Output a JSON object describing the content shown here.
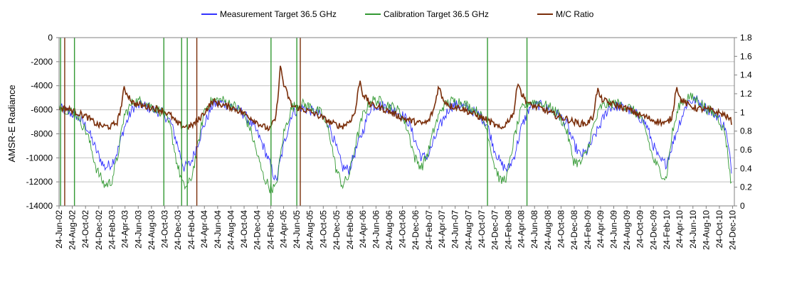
{
  "chart_data": {
    "type": "line",
    "title": "",
    "y_left_label": "AMSR-E Radiance",
    "y_left_range": [
      -14000,
      0
    ],
    "y_left_ticks": [
      "0",
      "-2000",
      "-4000",
      "-6000",
      "-8000",
      "-10000",
      "-12000",
      "-14000"
    ],
    "y_left_tick_values": [
      0,
      -2000,
      -4000,
      -6000,
      -8000,
      -10000,
      -12000,
      -14000
    ],
    "y_right_range": [
      0,
      1.8
    ],
    "y_right_ticks": [
      "1.8",
      "1.6",
      "1.4",
      "1.2",
      "1",
      "0.8",
      "0.6",
      "0.4",
      "0.2",
      "0"
    ],
    "y_right_tick_values": [
      1.8,
      1.6,
      1.4,
      1.2,
      1.0,
      0.8,
      0.6,
      0.4,
      0.2,
      0
    ],
    "x_range": [
      "2002-06-24",
      "2011-01-01"
    ],
    "x_ticks": [
      "24-Jun-02",
      "24-Aug-02",
      "24-Oct-02",
      "24-Dec-02",
      "24-Feb-03",
      "24-Apr-03",
      "24-Jun-03",
      "24-Aug-03",
      "24-Oct-03",
      "24-Dec-03",
      "24-Feb-04",
      "24-Apr-04",
      "24-Jun-04",
      "24-Aug-04",
      "24-Oct-04",
      "24-Dec-04",
      "24-Feb-05",
      "24-Apr-05",
      "24-Jun-05",
      "24-Aug-05",
      "24-Oct-05",
      "24-Dec-05",
      "24-Feb-06",
      "24-Apr-06",
      "24-Jun-06",
      "24-Aug-06",
      "24-Oct-06",
      "24-Dec-06",
      "24-Feb-07",
      "24-Apr-07",
      "24-Jun-07",
      "24-Aug-07",
      "24-Oct-07",
      "24-Dec-07",
      "24-Feb-08",
      "24-Apr-08",
      "24-Jun-08",
      "24-Aug-08",
      "24-Oct-08",
      "24-Dec-08",
      "24-Feb-09",
      "24-Apr-09",
      "24-Jun-09",
      "24-Aug-09",
      "24-Oct-09",
      "24-Dec-09",
      "24-Feb-10",
      "24-Apr-10",
      "24-Jun-10",
      "24-Aug-10",
      "24-Oct-10",
      "24-Dec-10"
    ],
    "grid": "horizontal",
    "legend_position": "top",
    "series": [
      {
        "name": "Measurement Target 36.5 GHz",
        "color": "#3333ff",
        "axis": "left",
        "x": [
          "2002-06-24",
          "2002-08-01",
          "2002-09-15",
          "2002-11-01",
          "2002-12-15",
          "2003-01-20",
          "2003-02-20",
          "2003-03-20",
          "2003-04-20",
          "2003-06-01",
          "2003-07-15",
          "2003-09-01",
          "2003-10-15",
          "2003-11-20",
          "2003-12-20",
          "2004-01-20",
          "2004-02-20",
          "2004-03-20",
          "2004-04-24",
          "2004-06-01",
          "2004-07-15",
          "2004-09-01",
          "2004-10-15",
          "2004-11-20",
          "2004-12-20",
          "2005-01-20",
          "2005-02-20",
          "2005-03-20",
          "2005-04-24",
          "2005-06-01",
          "2005-07-15",
          "2005-09-01",
          "2005-10-15",
          "2005-11-20",
          "2005-12-20",
          "2006-01-20",
          "2006-02-20",
          "2006-03-20",
          "2006-04-24",
          "2006-06-01",
          "2006-07-15",
          "2006-09-01",
          "2006-10-15",
          "2006-11-20",
          "2006-12-20",
          "2007-01-20",
          "2007-02-20",
          "2007-03-20",
          "2007-04-24",
          "2007-06-01",
          "2007-07-15",
          "2007-09-01",
          "2007-10-15",
          "2007-11-20",
          "2007-12-20",
          "2008-01-20",
          "2008-02-20",
          "2008-03-20",
          "2008-04-24",
          "2008-06-01",
          "2008-07-15",
          "2008-09-01",
          "2008-10-15",
          "2008-11-20",
          "2008-12-20",
          "2009-01-20",
          "2009-02-20",
          "2009-03-20",
          "2009-04-24",
          "2009-06-01",
          "2009-07-15",
          "2009-09-01",
          "2009-10-15",
          "2009-11-20",
          "2009-12-20",
          "2010-01-20",
          "2010-02-20",
          "2010-03-20",
          "2010-04-24",
          "2010-06-01",
          "2010-07-15",
          "2010-09-01",
          "2010-10-15",
          "2010-11-20",
          "2010-12-20"
        ],
        "values": [
          -5800,
          -6200,
          -6500,
          -7500,
          -9500,
          -10800,
          -10500,
          -9500,
          -7500,
          -5800,
          -5600,
          -6000,
          -6300,
          -7000,
          -8800,
          -10800,
          -10500,
          -9000,
          -7200,
          -5600,
          -5400,
          -5800,
          -6200,
          -7000,
          -7800,
          -9000,
          -10500,
          -12000,
          -9000,
          -6300,
          -5800,
          -6100,
          -6500,
          -7200,
          -9000,
          -10800,
          -11000,
          -9500,
          -7800,
          -5700,
          -5600,
          -5900,
          -6300,
          -7000,
          -8500,
          -10000,
          -9800,
          -8500,
          -7000,
          -5700,
          -5600,
          -6000,
          -6400,
          -7300,
          -9200,
          -10500,
          -11000,
          -10000,
          -7500,
          -5800,
          -5600,
          -6000,
          -6500,
          -7200,
          -8800,
          -9800,
          -9500,
          -8500,
          -7200,
          -5800,
          -5700,
          -6000,
          -6500,
          -7200,
          -8800,
          -10200,
          -10500,
          -9000,
          -7000,
          -5300,
          -5200,
          -6000,
          -6500,
          -7500,
          -11000
        ]
      },
      {
        "name": "Calibration Target 36.5 GHz",
        "color": "#339933",
        "axis": "left",
        "x": [
          "2002-06-24",
          "2002-08-01",
          "2002-09-15",
          "2002-11-01",
          "2002-12-15",
          "2003-01-20",
          "2003-02-20",
          "2003-03-20",
          "2003-04-20",
          "2003-06-01",
          "2003-07-15",
          "2003-09-01",
          "2003-10-15",
          "2003-11-20",
          "2003-12-20",
          "2004-01-20",
          "2004-02-20",
          "2004-03-20",
          "2004-04-24",
          "2004-06-01",
          "2004-07-15",
          "2004-09-01",
          "2004-10-15",
          "2004-11-20",
          "2004-12-20",
          "2005-01-20",
          "2005-02-20",
          "2005-03-20",
          "2005-04-24",
          "2005-06-01",
          "2005-07-15",
          "2005-09-01",
          "2005-10-15",
          "2005-11-20",
          "2005-12-20",
          "2006-01-20",
          "2006-02-20",
          "2006-03-20",
          "2006-04-24",
          "2006-06-01",
          "2006-07-15",
          "2006-09-01",
          "2006-10-15",
          "2006-11-20",
          "2006-12-20",
          "2007-01-20",
          "2007-02-20",
          "2007-03-20",
          "2007-04-24",
          "2007-06-01",
          "2007-07-15",
          "2007-09-01",
          "2007-10-15",
          "2007-11-20",
          "2007-12-20",
          "2008-01-20",
          "2008-02-20",
          "2008-03-20",
          "2008-04-24",
          "2008-06-01",
          "2008-07-15",
          "2008-09-01",
          "2008-10-15",
          "2008-11-20",
          "2008-12-20",
          "2009-01-20",
          "2009-02-20",
          "2009-03-20",
          "2009-04-24",
          "2009-06-01",
          "2009-07-15",
          "2009-09-01",
          "2009-10-15",
          "2009-11-20",
          "2009-12-20",
          "2010-01-20",
          "2010-02-20",
          "2010-03-20",
          "2010-04-24",
          "2010-06-01",
          "2010-07-15",
          "2010-09-01",
          "2010-10-15",
          "2010-11-20",
          "2010-12-20"
        ],
        "values": [
          -5600,
          -6000,
          -6400,
          -8000,
          -11000,
          -12300,
          -12000,
          -10000,
          -6500,
          -5300,
          -5300,
          -5800,
          -6200,
          -7500,
          -10500,
          -12500,
          -12000,
          -9500,
          -6000,
          -5200,
          -5200,
          -5600,
          -6200,
          -7500,
          -9500,
          -11500,
          -12500,
          -12500,
          -8000,
          -5800,
          -5500,
          -5800,
          -6300,
          -7800,
          -10800,
          -12300,
          -11500,
          -9000,
          -6500,
          -5200,
          -5300,
          -5700,
          -6200,
          -7800,
          -10000,
          -10800,
          -9500,
          -7500,
          -5800,
          -5300,
          -5300,
          -5800,
          -6300,
          -7800,
          -10500,
          -12000,
          -11500,
          -8500,
          -6000,
          -5300,
          -5400,
          -5800,
          -6400,
          -7800,
          -10200,
          -10500,
          -9500,
          -7500,
          -5800,
          -5500,
          -5500,
          -5800,
          -6400,
          -7800,
          -10000,
          -11000,
          -11800,
          -8000,
          -5500,
          -4900,
          -5200,
          -6000,
          -6500,
          -8000,
          -12500
        ]
      },
      {
        "name": "M/C Ratio",
        "color": "#7a2e0a",
        "axis": "right",
        "x": [
          "2002-06-24",
          "2002-08-01",
          "2002-09-15",
          "2002-11-01",
          "2002-12-15",
          "2003-01-20",
          "2003-02-20",
          "2003-03-20",
          "2003-04-05",
          "2003-04-20",
          "2003-06-01",
          "2003-07-15",
          "2003-09-01",
          "2003-10-15",
          "2003-11-20",
          "2003-12-20",
          "2004-01-20",
          "2004-02-20",
          "2004-03-20",
          "2004-04-24",
          "2004-06-01",
          "2004-07-15",
          "2004-09-01",
          "2004-10-15",
          "2004-11-20",
          "2004-12-20",
          "2005-01-20",
          "2005-02-20",
          "2005-03-20",
          "2005-04-10",
          "2005-04-24",
          "2005-06-01",
          "2005-07-15",
          "2005-09-01",
          "2005-10-15",
          "2005-11-20",
          "2005-12-20",
          "2006-01-20",
          "2006-02-20",
          "2006-03-20",
          "2006-04-10",
          "2006-04-24",
          "2006-06-01",
          "2006-07-15",
          "2006-09-01",
          "2006-10-15",
          "2006-11-20",
          "2006-12-20",
          "2007-01-20",
          "2007-02-20",
          "2007-03-20",
          "2007-04-10",
          "2007-04-24",
          "2007-06-01",
          "2007-07-15",
          "2007-09-01",
          "2007-10-15",
          "2007-11-20",
          "2007-12-20",
          "2008-01-20",
          "2008-02-20",
          "2008-03-20",
          "2008-04-10",
          "2008-04-24",
          "2008-06-01",
          "2008-07-15",
          "2008-09-01",
          "2008-10-15",
          "2008-11-20",
          "2008-12-20",
          "2009-01-20",
          "2009-02-20",
          "2009-03-20",
          "2009-04-10",
          "2009-04-24",
          "2009-06-01",
          "2009-07-15",
          "2009-09-01",
          "2009-10-15",
          "2009-11-20",
          "2009-12-20",
          "2010-01-20",
          "2010-02-20",
          "2010-03-20",
          "2010-04-10",
          "2010-04-24",
          "2010-06-01",
          "2010-07-15",
          "2010-09-01",
          "2010-10-15",
          "2010-11-20",
          "2010-12-20"
        ],
        "values": [
          1.05,
          1.04,
          1.0,
          0.95,
          0.87,
          0.85,
          0.85,
          0.9,
          1.05,
          1.25,
          1.1,
          1.07,
          1.05,
          1.02,
          0.97,
          0.88,
          0.85,
          0.85,
          0.9,
          1.0,
          1.12,
          1.08,
          1.05,
          1.0,
          0.95,
          0.9,
          0.85,
          0.82,
          0.95,
          1.5,
          1.3,
          1.07,
          1.04,
          1.0,
          0.95,
          0.9,
          0.87,
          0.85,
          0.9,
          1.0,
          1.35,
          1.2,
          1.08,
          1.05,
          1.0,
          0.95,
          0.92,
          0.9,
          0.88,
          0.9,
          1.05,
          1.3,
          1.15,
          1.07,
          1.05,
          1.0,
          0.95,
          0.92,
          0.87,
          0.82,
          0.9,
          1.0,
          1.35,
          1.2,
          1.08,
          1.05,
          1.0,
          0.95,
          0.93,
          0.9,
          0.88,
          0.88,
          0.95,
          1.25,
          1.15,
          1.1,
          1.07,
          1.03,
          0.98,
          0.95,
          0.92,
          0.9,
          0.88,
          0.95,
          1.3,
          1.15,
          1.08,
          1.04,
          1.03,
          1.0,
          0.97,
          0.9
        ]
      }
    ],
    "spikes": [
      {
        "date": "2002-07-01",
        "series": "Calibration Target 36.5 GHz"
      },
      {
        "date": "2002-07-20",
        "series": "M/C Ratio"
      },
      {
        "date": "2002-09-03",
        "series": "Calibration Target 36.5 GHz"
      },
      {
        "date": "2003-10-20",
        "series": "Calibration Target 36.5 GHz"
      },
      {
        "date": "2004-01-10",
        "series": "Calibration Target 36.5 GHz"
      },
      {
        "date": "2004-02-05",
        "series": "Calibration Target 36.5 GHz"
      },
      {
        "date": "2004-03-20",
        "series": "M/C Ratio"
      },
      {
        "date": "2005-02-25",
        "series": "Calibration Target 36.5 GHz"
      },
      {
        "date": "2005-06-24",
        "series": "Calibration Target 36.5 GHz"
      },
      {
        "date": "2005-07-10",
        "series": "M/C Ratio"
      },
      {
        "date": "2007-11-20",
        "series": "Calibration Target 36.5 GHz"
      },
      {
        "date": "2008-05-20",
        "series": "Calibration Target 36.5 GHz"
      }
    ]
  }
}
